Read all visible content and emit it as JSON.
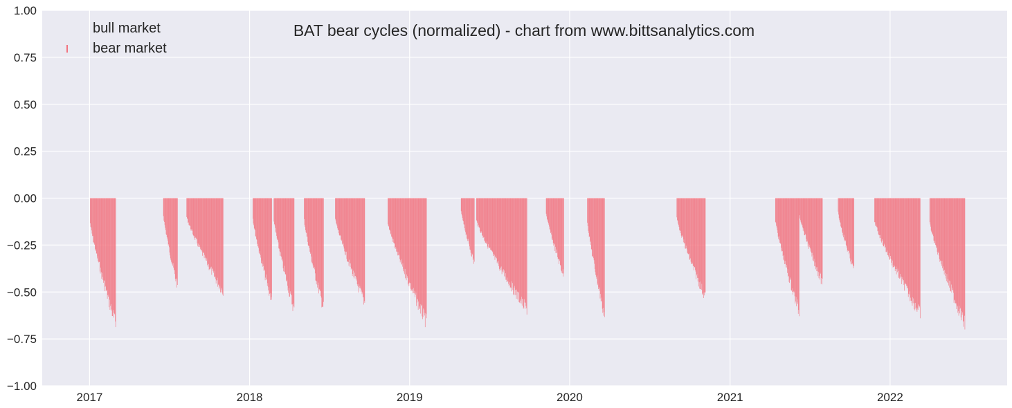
{
  "chart_data": {
    "type": "bar",
    "title": "BAT bear cycles (normalized)  - chart from www.bittsanalytics.com",
    "xlabel": "",
    "ylabel": "",
    "xlim": [
      "2016-09-15",
      "2022-09-25"
    ],
    "ylim": [
      -1.0,
      1.0
    ],
    "grid": true,
    "legend": {
      "placement": "top-left",
      "entries": [
        "bull market",
        "bear market"
      ]
    },
    "colors": {
      "background": "#EAEAF2",
      "grid": "#FFFFFF",
      "bull": "#FFFFFF",
      "bear": "#F2737F"
    },
    "y_ticks": [
      1.0,
      0.75,
      0.5,
      0.25,
      0.0,
      -0.25,
      -0.5,
      -0.75,
      -1.0
    ],
    "y_tick_labels": [
      "1.00",
      "0.75",
      "0.50",
      "0.25",
      "0.00",
      "−0.25",
      "−0.50",
      "−0.75",
      "−1.00"
    ],
    "x_ticks": [
      "2017-01-01",
      "2018-01-01",
      "2019-01-01",
      "2020-01-01",
      "2021-01-01",
      "2022-01-01"
    ],
    "x_tick_labels": [
      "2017",
      "2018",
      "2019",
      "2020",
      "2021",
      "2022"
    ],
    "series": [
      {
        "name": "bear market",
        "description": "daily drawdown from the cycle high, per bear cycle",
        "cycles": [
          {
            "start": "2017-01-02",
            "end": "2017-03-01",
            "min": -0.7
          },
          {
            "start": "2017-06-18",
            "end": "2017-07-20",
            "min": -0.49
          },
          {
            "start": "2017-08-10",
            "end": "2017-11-01",
            "min": -0.52
          },
          {
            "start": "2018-01-08",
            "end": "2018-02-20",
            "min": -0.57
          },
          {
            "start": "2018-02-25",
            "end": "2018-04-12",
            "min": -0.62
          },
          {
            "start": "2018-05-05",
            "end": "2018-06-18",
            "min": -0.61
          },
          {
            "start": "2018-07-15",
            "end": "2018-09-20",
            "min": -0.58
          },
          {
            "start": "2018-11-12",
            "end": "2019-02-08",
            "min": -0.69
          },
          {
            "start": "2019-04-28",
            "end": "2019-05-28",
            "min": -0.36
          },
          {
            "start": "2019-06-02",
            "end": "2019-09-25",
            "min": -0.62
          },
          {
            "start": "2019-11-08",
            "end": "2019-12-18",
            "min": -0.43
          },
          {
            "start": "2020-02-10",
            "end": "2020-03-20",
            "min": -0.65
          },
          {
            "start": "2020-09-01",
            "end": "2020-11-05",
            "min": -0.55
          },
          {
            "start": "2021-04-14",
            "end": "2021-06-07",
            "min": -0.63
          },
          {
            "start": "2021-06-08",
            "end": "2021-07-30",
            "min": -0.47
          },
          {
            "start": "2021-09-04",
            "end": "2021-10-10",
            "min": -0.4
          },
          {
            "start": "2021-11-26",
            "end": "2022-03-10",
            "min": -0.64
          },
          {
            "start": "2022-04-01",
            "end": "2022-06-20",
            "min": -0.7
          }
        ]
      },
      {
        "name": "bull market",
        "description": "rendered in white, nearly invisible against gridlines",
        "values": []
      }
    ]
  }
}
